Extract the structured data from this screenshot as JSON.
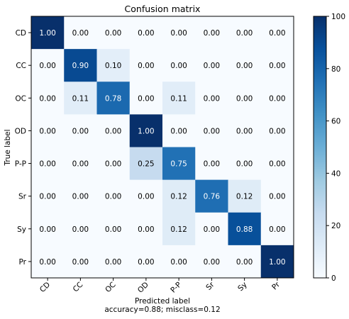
{
  "chart_data": {
    "type": "heatmap",
    "title": "Confusion matrix",
    "xlabel": "Predicted label",
    "xlabel_sub": "accuracy=0.88; misclass=0.12",
    "ylabel": "True label",
    "x_categories": [
      "CD",
      "CC",
      "OC",
      "OD",
      "P-P",
      "Sr",
      "Sy",
      "Pr"
    ],
    "y_categories": [
      "CD",
      "CC",
      "OC",
      "OD",
      "P-P",
      "Sr",
      "Sy",
      "Pr"
    ],
    "values": [
      [
        1.0,
        0.0,
        0.0,
        0.0,
        0.0,
        0.0,
        0.0,
        0.0
      ],
      [
        0.0,
        0.9,
        0.1,
        0.0,
        0.0,
        0.0,
        0.0,
        0.0
      ],
      [
        0.0,
        0.11,
        0.78,
        0.0,
        0.11,
        0.0,
        0.0,
        0.0
      ],
      [
        0.0,
        0.0,
        0.0,
        1.0,
        0.0,
        0.0,
        0.0,
        0.0
      ],
      [
        0.0,
        0.0,
        0.0,
        0.25,
        0.75,
        0.0,
        0.0,
        0.0
      ],
      [
        0.0,
        0.0,
        0.0,
        0.0,
        0.12,
        0.76,
        0.12,
        0.0
      ],
      [
        0.0,
        0.0,
        0.0,
        0.0,
        0.12,
        0.0,
        0.88,
        0.0
      ],
      [
        0.0,
        0.0,
        0.0,
        0.0,
        0.0,
        0.0,
        0.0,
        1.0
      ]
    ],
    "value_format": "2 decimals",
    "colormap": "Blues",
    "colorbar": {
      "range": [
        0,
        100
      ],
      "ticks": [
        0,
        20,
        40,
        60,
        80,
        100
      ]
    },
    "grid": false,
    "colors": {
      "low": "#f7fbff",
      "high": "#08306b",
      "text_light": "#ffffff",
      "text_dark": "#000000"
    }
  }
}
